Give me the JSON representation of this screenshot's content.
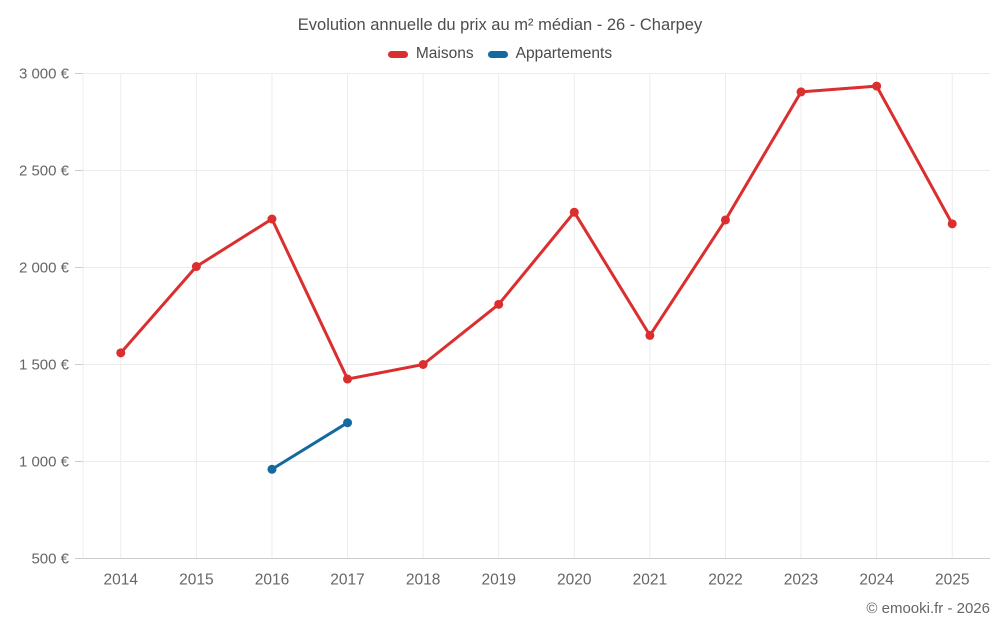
{
  "page": {
    "footer": "© emooki.fr - 2026",
    "background": "#ffffff"
  },
  "colors": {
    "grid": "#ececec",
    "axis_line": "#cccccc",
    "tick": "#cccccc",
    "title_text": "#4d4d4d",
    "axis_text": "#666666",
    "legend_text": "#4a4a4a"
  },
  "chart_data": {
    "type": "line",
    "title": "Evolution annuelle du prix au m² médian - 26 - Charpey",
    "xlabel": "",
    "ylabel": "",
    "categories": [
      "2014",
      "2015",
      "2016",
      "2017",
      "2018",
      "2019",
      "2020",
      "2021",
      "2022",
      "2023",
      "2024",
      "2025"
    ],
    "series": [
      {
        "name": "Maisons",
        "color": "#db2e2e",
        "values": [
          1560,
          2005,
          2250,
          1425,
          1500,
          1810,
          2285,
          1650,
          2245,
          2905,
          2935,
          2225
        ]
      },
      {
        "name": "Appartements",
        "color": "#14699e",
        "values": [
          null,
          null,
          960,
          1200,
          null,
          null,
          null,
          null,
          null,
          null,
          null,
          null
        ]
      }
    ],
    "y_axis": {
      "min": 500,
      "max": 3000,
      "tick_step": 500,
      "tick_labels": [
        "500 €",
        "1 000 €",
        "1 500 €",
        "2 000 €",
        "2 500 €",
        "3 000 €"
      ]
    },
    "legend_position": "top",
    "grid": true
  }
}
